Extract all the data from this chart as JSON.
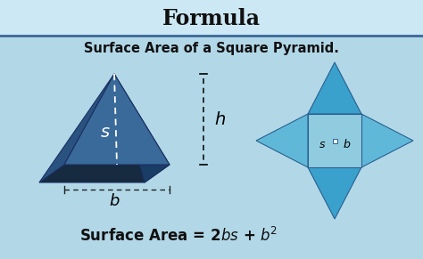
{
  "title": "Formula",
  "subtitle": "Surface Area of a Square Pyramid.",
  "bg_color": "#b2d8e8",
  "header_bg": "#cce8f4",
  "title_color": "#111111",
  "subtitle_color": "#111111",
  "formula_color": "#111111",
  "pyramid_front_color": "#3a6a9a",
  "pyramid_right_color": "#1a3d65",
  "pyramid_left_color": "#2a5280",
  "pyramid_base_color": "#162a40",
  "net_tri_tb_color": "#3aa0cc",
  "net_tri_lr_color": "#60b8d8",
  "net_center_color": "#90cce0",
  "net_outline_color": "#2a6090",
  "separator_color": "#3a6898"
}
